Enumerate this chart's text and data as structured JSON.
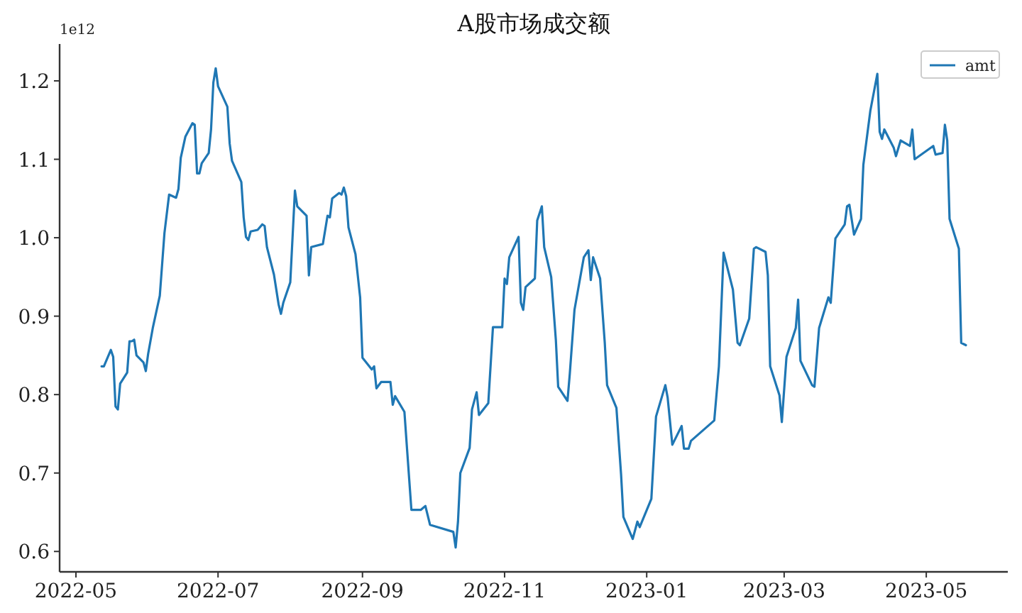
{
  "chart_data": {
    "type": "line",
    "title": "A股市场成交额",
    "annotations": [
      "1e12"
    ],
    "legend": "top right",
    "grid": false,
    "line_style": "solid",
    "marker": "none",
    "xlim": [
      "2022-04-24",
      "2023-06-05"
    ],
    "ylim": [
      0.574,
      1.247
    ],
    "xticks": [
      "2022-05",
      "2022-07",
      "2022-09",
      "2022-11",
      "2023-01",
      "2023-03",
      "2023-05"
    ],
    "yticks": [
      0.6,
      0.7,
      0.8,
      0.9,
      {
        "value": 1,
        "label": "1.0"
      },
      1.1,
      1.2
    ],
    "x": [
      "2022-05-12",
      "2022-05-13",
      "2022-05-16",
      "2022-05-17",
      "2022-05-18",
      "2022-05-19",
      "2022-05-20",
      "2022-05-23",
      "2022-05-24",
      "2022-05-25",
      "2022-05-26",
      "2022-05-27",
      "2022-05-30",
      "2022-05-31",
      "2022-06-01",
      "2022-06-03",
      "2022-06-06",
      "2022-06-08",
      "2022-06-10",
      "2022-06-13",
      "2022-06-14",
      "2022-06-15",
      "2022-06-17",
      "2022-06-20",
      "2022-06-21",
      "2022-06-22",
      "2022-06-23",
      "2022-06-24",
      "2022-06-27",
      "2022-06-28",
      "2022-06-29",
      "2022-06-30",
      "2022-07-01",
      "2022-07-05",
      "2022-07-06",
      "2022-07-07",
      "2022-07-11",
      "2022-07-12",
      "2022-07-13",
      "2022-07-14",
      "2022-07-15",
      "2022-07-18",
      "2022-07-20",
      "2022-07-21",
      "2022-07-22",
      "2022-07-25",
      "2022-07-27",
      "2022-07-28",
      "2022-07-29",
      "2022-08-01",
      "2022-08-03",
      "2022-08-04",
      "2022-08-08",
      "2022-08-09",
      "2022-08-10",
      "2022-08-15",
      "2022-08-16",
      "2022-08-17",
      "2022-08-18",
      "2022-08-19",
      "2022-08-22",
      "2022-08-23",
      "2022-08-24",
      "2022-08-25",
      "2022-08-26",
      "2022-08-29",
      "2022-08-31",
      "2022-09-01",
      "2022-09-05",
      "2022-09-06",
      "2022-09-07",
      "2022-09-09",
      "2022-09-13",
      "2022-09-14",
      "2022-09-15",
      "2022-09-19",
      "2022-09-20",
      "2022-09-22",
      "2022-09-26",
      "2022-09-28",
      "2022-09-30",
      "2022-10-10",
      "2022-10-11",
      "2022-10-12",
      "2022-10-13",
      "2022-10-17",
      "2022-10-18",
      "2022-10-20",
      "2022-10-21",
      "2022-10-25",
      "2022-10-27",
      "2022-10-31",
      "2022-11-01",
      "2022-11-02",
      "2022-11-03",
      "2022-11-07",
      "2022-11-08",
      "2022-11-09",
      "2022-11-10",
      "2022-11-14",
      "2022-11-15",
      "2022-11-17",
      "2022-11-18",
      "2022-11-21",
      "2022-11-23",
      "2022-11-24",
      "2022-11-28",
      "2022-11-29",
      "2022-12-01",
      "2022-12-05",
      "2022-12-07",
      "2022-12-08",
      "2022-12-09",
      "2022-12-12",
      "2022-12-14",
      "2022-12-15",
      "2022-12-19",
      "2022-12-21",
      "2022-12-22",
      "2022-12-26",
      "2022-12-28",
      "2022-12-29",
      "2023-01-03",
      "2023-01-05",
      "2023-01-09",
      "2023-01-10",
      "2023-01-12",
      "2023-01-16",
      "2023-01-17",
      "2023-01-19",
      "2023-01-20",
      "2023-01-30",
      "2023-02-01",
      "2023-02-03",
      "2023-02-07",
      "2023-02-09",
      "2023-02-10",
      "2023-02-14",
      "2023-02-16",
      "2023-02-17",
      "2023-02-21",
      "2023-02-22",
      "2023-02-23",
      "2023-02-27",
      "2023-02-28",
      "2023-03-02",
      "2023-03-06",
      "2023-03-07",
      "2023-03-08",
      "2023-03-13",
      "2023-03-14",
      "2023-03-16",
      "2023-03-20",
      "2023-03-21",
      "2023-03-23",
      "2023-03-27",
      "2023-03-28",
      "2023-03-29",
      "2023-03-31",
      "2023-04-03",
      "2023-04-04",
      "2023-04-07",
      "2023-04-10",
      "2023-04-11",
      "2023-04-12",
      "2023-04-13",
      "2023-04-17",
      "2023-04-18",
      "2023-04-20",
      "2023-04-24",
      "2023-04-25",
      "2023-04-26",
      "2023-05-04",
      "2023-05-05",
      "2023-05-08",
      "2023-05-09",
      "2023-05-10",
      "2023-05-11",
      "2023-05-15",
      "2023-05-16",
      "2023-05-18"
    ],
    "series": [
      {
        "name": "amt",
        "color": "#1f77b4",
        "values": [
          0.836,
          0.836,
          0.857,
          0.848,
          0.785,
          0.781,
          0.814,
          0.828,
          0.868,
          0.868,
          0.87,
          0.85,
          0.841,
          0.83,
          0.852,
          0.885,
          0.926,
          1.006,
          1.055,
          1.051,
          1.062,
          1.102,
          1.129,
          1.146,
          1.144,
          1.082,
          1.082,
          1.095,
          1.108,
          1.138,
          1.198,
          1.216,
          1.193,
          1.167,
          1.12,
          1.098,
          1.071,
          1.026,
          1.001,
          0.997,
          1.008,
          1.01,
          1.017,
          1.015,
          0.988,
          0.953,
          0.915,
          0.903,
          0.917,
          0.943,
          1.06,
          1.04,
          1.028,
          0.952,
          0.988,
          0.992,
          1.01,
          1.028,
          1.026,
          1.05,
          1.057,
          1.055,
          1.064,
          1.053,
          1.013,
          0.979,
          0.924,
          0.847,
          0.832,
          0.836,
          0.808,
          0.816,
          0.816,
          0.787,
          0.798,
          0.778,
          0.736,
          0.653,
          0.653,
          0.658,
          0.634,
          0.625,
          0.605,
          0.638,
          0.7,
          0.732,
          0.781,
          0.803,
          0.774,
          0.789,
          0.886,
          0.886,
          0.948,
          0.941,
          0.975,
          1.001,
          0.917,
          0.908,
          0.937,
          0.948,
          1.022,
          1.04,
          0.988,
          0.95,
          0.87,
          0.81,
          0.792,
          0.827,
          0.908,
          0.975,
          0.984,
          0.946,
          0.975,
          0.948,
          0.866,
          0.812,
          0.783,
          0.698,
          0.644,
          0.616,
          0.638,
          0.631,
          0.667,
          0.772,
          0.812,
          0.796,
          0.736,
          0.76,
          0.731,
          0.731,
          0.741,
          0.767,
          0.836,
          0.981,
          0.934,
          0.866,
          0.863,
          0.897,
          0.986,
          0.988,
          0.982,
          0.952,
          0.836,
          0.799,
          0.765,
          0.848,
          0.885,
          0.921,
          0.843,
          0.812,
          0.81,
          0.885,
          0.924,
          0.917,
          0.999,
          1.017,
          1.04,
          1.042,
          1.004,
          1.024,
          1.093,
          1.162,
          1.209,
          1.135,
          1.126,
          1.138,
          1.115,
          1.104,
          1.124,
          1.117,
          1.138,
          1.1,
          1.117,
          1.106,
          1.108,
          1.144,
          1.124,
          1.024,
          0.986,
          0.866,
          0.863
        ]
      }
    ]
  }
}
